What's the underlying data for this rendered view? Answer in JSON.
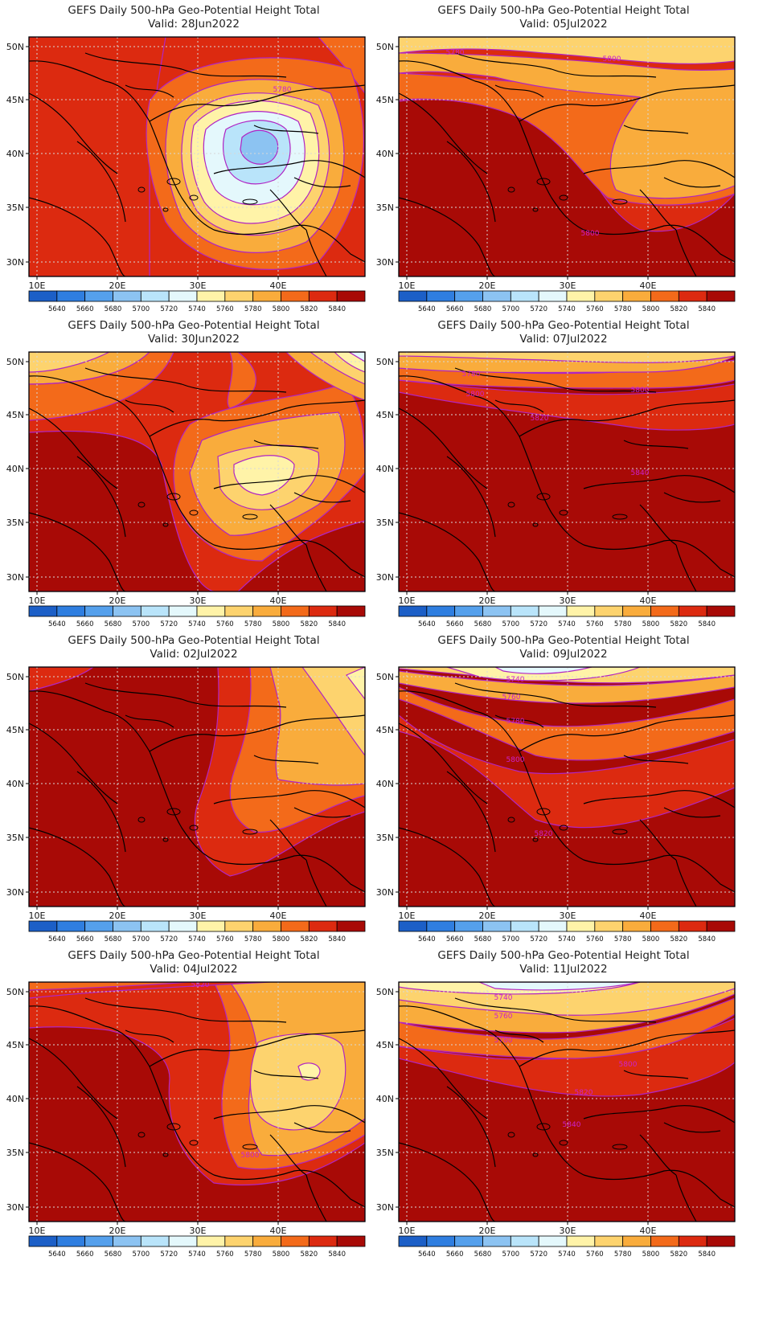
{
  "figure": {
    "title": "GEFS Daily 500-hPa Geo-Potential Height Total",
    "valid_prefix": "Valid:"
  },
  "axes": {
    "lon_ticks": [
      "10E",
      "20E",
      "30E",
      "40E"
    ],
    "lat_ticks": [
      "50N",
      "45N",
      "40N",
      "35N",
      "30N"
    ]
  },
  "colorbar": {
    "levels": [
      "5640",
      "5660",
      "5680",
      "5700",
      "5720",
      "5740",
      "5760",
      "5780",
      "5800",
      "5820",
      "5840"
    ],
    "colors": [
      "#1c5fc7",
      "#2f7ee0",
      "#55a0ec",
      "#8cc3f2",
      "#b9e4fa",
      "#e4f8fc",
      "#fff3a8",
      "#fdd36e",
      "#f9ac3c",
      "#f36a1a",
      "#dc2a10",
      "#a80a06"
    ]
  },
  "contour_line_color": "#b024c4",
  "panels": [
    {
      "valid": "Valid: 28Jun2022",
      "labels": [
        "5780"
      ]
    },
    {
      "valid": "Valid: 05Jul2022",
      "labels": [
        "5780",
        "5800",
        "5800"
      ]
    },
    {
      "valid": "Valid: 30Jun2022",
      "labels": []
    },
    {
      "valid": "Valid: 07Jul2022",
      "labels": [
        "5780",
        "5800",
        "5800",
        "5820",
        "5840"
      ]
    },
    {
      "valid": "Valid: 02Jul2022",
      "labels": []
    },
    {
      "valid": "Valid: 09Jul2022",
      "labels": [
        "5740",
        "5760",
        "5780",
        "5800",
        "5820"
      ]
    },
    {
      "valid": "Valid: 04Jul2022",
      "labels": [
        "5820",
        "5800"
      ]
    },
    {
      "valid": "Valid: 11Jul2022",
      "labels": [
        "5740",
        "5760",
        "5780",
        "5800",
        "5820",
        "5840"
      ]
    }
  ]
}
